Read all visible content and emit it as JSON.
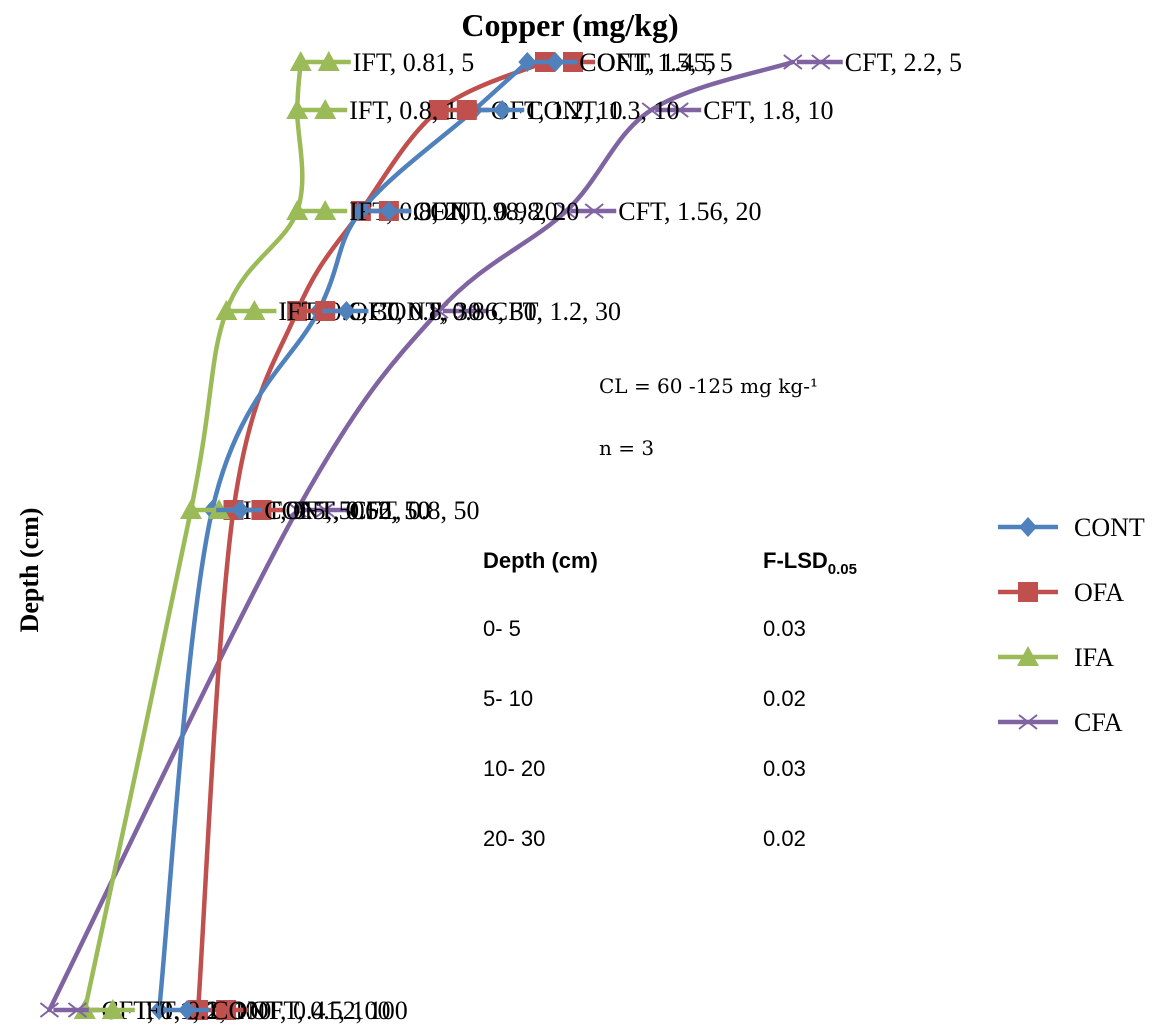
{
  "chart_data": {
    "type": "line",
    "title": "Copper (mg/kg)",
    "xlabel": "",
    "ylabel": "Depth (cm)",
    "y_reversed": true,
    "grid": false,
    "legend_position": "right",
    "legend": [
      "CONT",
      "OFA",
      "IFA",
      "CFA"
    ],
    "colors": {
      "CONT": "#4f81bd",
      "OFA": "#c0504d",
      "IFA": "#9bbb59",
      "CFA": "#8064a2"
    },
    "markers": {
      "CONT": "diamond",
      "OFA": "square",
      "IFA": "triangle",
      "CFA": "x"
    },
    "series": [
      {
        "legend": "CONT",
        "label_name": "CONT",
        "points": [
          {
            "x": 1.45,
            "y": 5,
            "label": "CONT, 1.45, 5"
          },
          {
            "x": 1.3,
            "y": 10,
            "label": "CONT, 1.3, 10"
          },
          {
            "x": 0.98,
            "y": 20,
            "label": "CONT, 0.98, 20"
          },
          {
            "x": 0.86,
            "y": 30,
            "label": "CONT, 0.86, 30"
          },
          {
            "x": 0.56,
            "y": 50,
            "label": "CONT, 0.56, 50"
          },
          {
            "x": 0.41,
            "y": 100,
            "label": "CONT, 0.41, 100"
          }
        ]
      },
      {
        "legend": "OFA",
        "label_name": "OFT",
        "points": [
          {
            "x": 1.5,
            "y": 5,
            "label": "OFT, 1.5, 5"
          },
          {
            "x": 1.2,
            "y": 10,
            "label": "OFT, 1.2, 10"
          },
          {
            "x": 0.98,
            "y": 20,
            "label": "OFT, 0.98, 20"
          },
          {
            "x": 0.8,
            "y": 30,
            "label": "OFT, 0.8, 30"
          },
          {
            "x": 0.62,
            "y": 50,
            "label": "OFT, 0.62, 50"
          },
          {
            "x": 0.52,
            "y": 100,
            "label": "OFT, 0.52, 100"
          }
        ]
      },
      {
        "legend": "IFA",
        "label_name": "IFT",
        "points": [
          {
            "x": 0.81,
            "y": 5,
            "label": "IFT, 0.81, 5"
          },
          {
            "x": 0.8,
            "y": 10,
            "label": "IFT, 0.8, 10"
          },
          {
            "x": 0.8,
            "y": 20,
            "label": "IFT, 0.8, 20"
          },
          {
            "x": 0.6,
            "y": 30,
            "label": "IFT, 0.6, 30"
          },
          {
            "x": 0.5,
            "y": 50,
            "label": "IFT, 0.5, 50"
          },
          {
            "x": 0.2,
            "y": 100,
            "label": "IFT, 0.2, 100"
          }
        ]
      },
      {
        "legend": "CFA",
        "label_name": "CFT",
        "points": [
          {
            "x": 2.2,
            "y": 5,
            "label": "CFT, 2.2, 5"
          },
          {
            "x": 1.8,
            "y": 10,
            "label": "CFT, 1.8, 10"
          },
          {
            "x": 1.56,
            "y": 20,
            "label": "CFT, 1.56, 20"
          },
          {
            "x": 1.2,
            "y": 30,
            "label": "CFT, 1.2, 30"
          },
          {
            "x": 0.8,
            "y": 50,
            "label": "CFT, 0.8, 50"
          },
          {
            "x": 0.1,
            "y": 100,
            "label": "CFT, 0.1, 100"
          }
        ]
      }
    ],
    "annotations": {
      "cl": "CL   = 60 -125 mg kg-¹",
      "n": "n = 3"
    },
    "lsd_table": {
      "header_depth": "Depth (cm)",
      "header_lsd_main": "F-LSD",
      "header_lsd_sub": "0.05",
      "rows": [
        {
          "depth": "0- 5",
          "value": "0.03"
        },
        {
          "depth": "5- 10",
          "value": "0.02"
        },
        {
          "depth": "10- 20",
          "value": "0.03"
        },
        {
          "depth": "20- 30",
          "value": "0.02"
        }
      ]
    }
  }
}
